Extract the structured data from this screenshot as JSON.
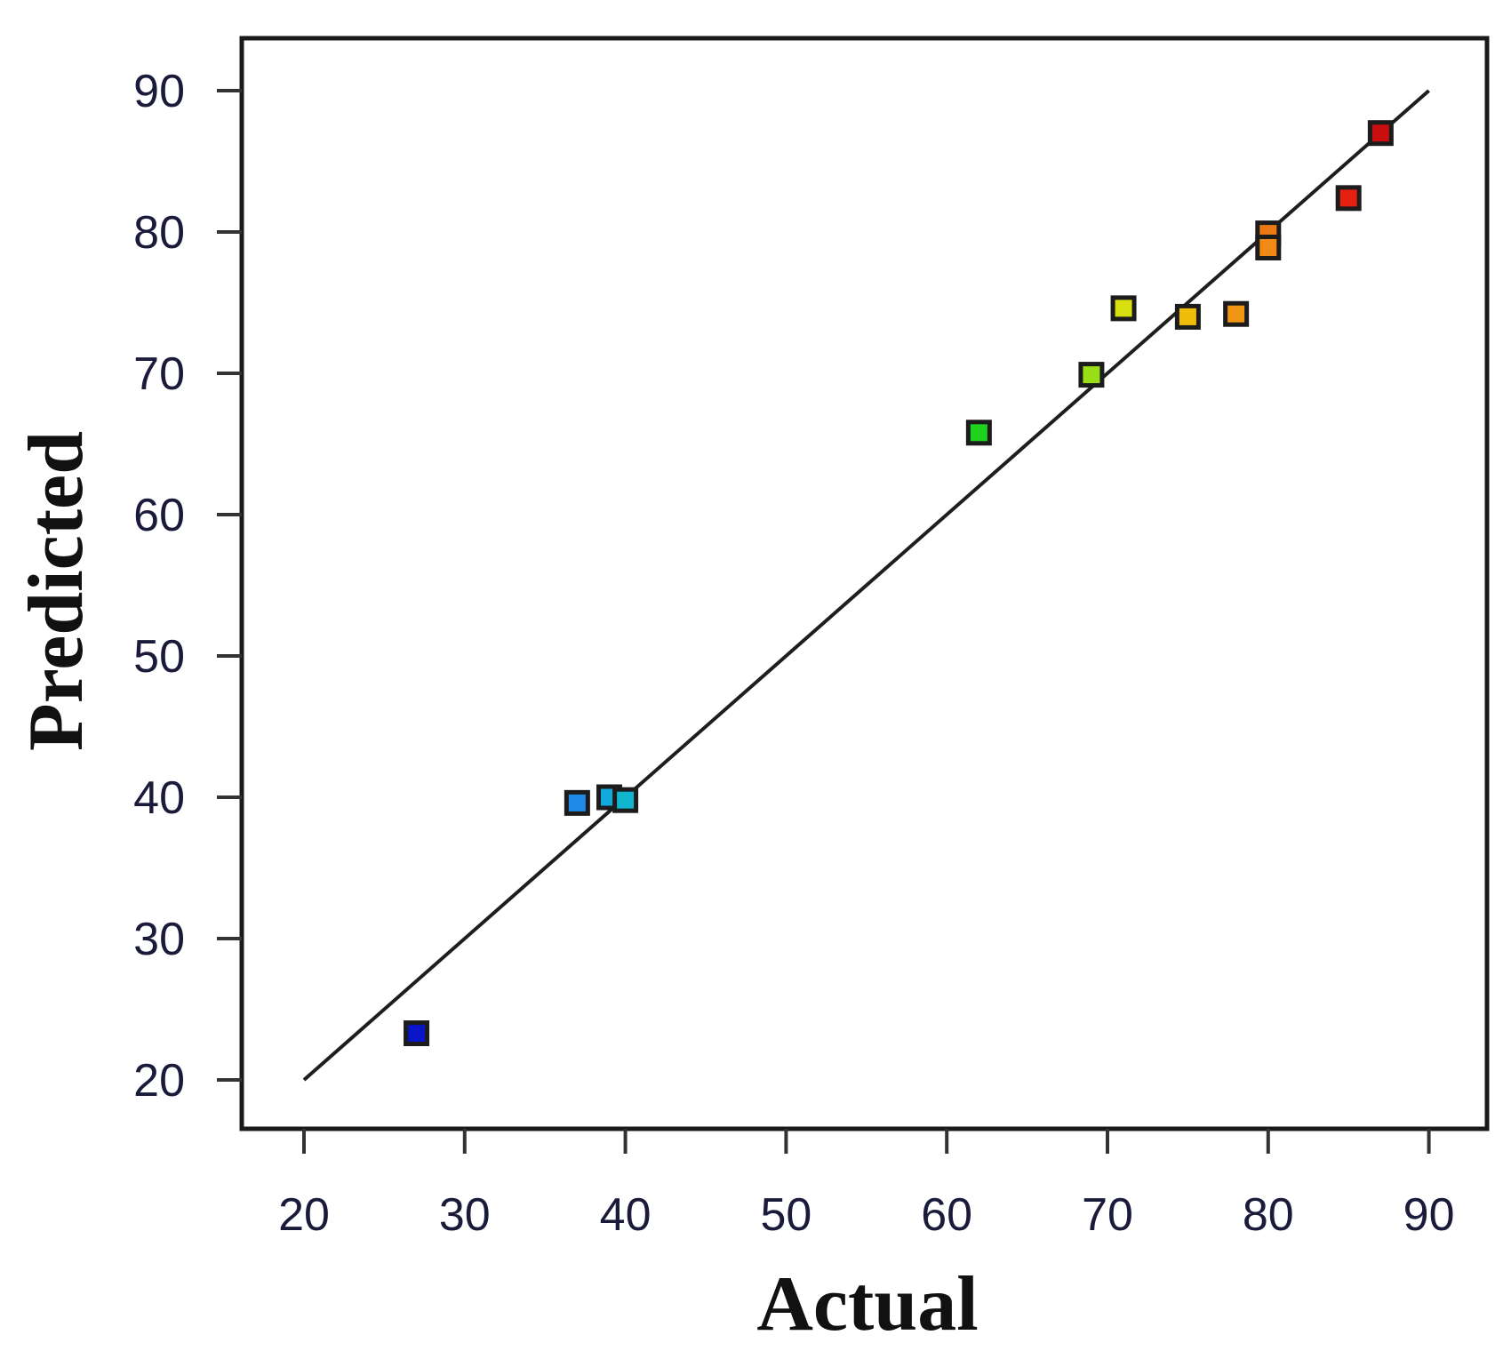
{
  "chart_data": {
    "type": "scatter",
    "title": "",
    "xlabel": "Actual",
    "ylabel": "Predicted",
    "xlim": [
      20,
      90
    ],
    "ylim": [
      20,
      90
    ],
    "xticks": [
      "20",
      "30",
      "40",
      "50",
      "60",
      "70",
      "80",
      "90"
    ],
    "yticks": [
      "20",
      "30",
      "40",
      "50",
      "60",
      "70",
      "80",
      "90"
    ],
    "grid": false,
    "reference_line": {
      "from": [
        20,
        20
      ],
      "to": [
        90,
        90
      ]
    },
    "points": [
      {
        "x": 27,
        "y": 23.3,
        "color": "#0a14c8"
      },
      {
        "x": 37,
        "y": 39.6,
        "color": "#1e8ce6"
      },
      {
        "x": 39,
        "y": 40.0,
        "color": "#12aadc"
      },
      {
        "x": 40,
        "y": 39.8,
        "color": "#10b4cc"
      },
      {
        "x": 62,
        "y": 65.8,
        "color": "#1ed21e"
      },
      {
        "x": 69,
        "y": 69.9,
        "color": "#9ade18"
      },
      {
        "x": 71,
        "y": 74.6,
        "color": "#d8e010"
      },
      {
        "x": 75,
        "y": 74.0,
        "color": "#f0be0a"
      },
      {
        "x": 78,
        "y": 74.2,
        "color": "#f09614"
      },
      {
        "x": 80,
        "y": 79.9,
        "color": "#ec7a12"
      },
      {
        "x": 80,
        "y": 78.9,
        "color": "#f08a14"
      },
      {
        "x": 85,
        "y": 82.4,
        "color": "#e42010"
      },
      {
        "x": 87,
        "y": 87.0,
        "color": "#c80e0e"
      }
    ]
  }
}
